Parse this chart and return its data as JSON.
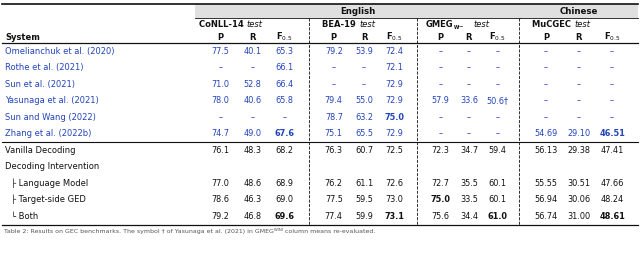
{
  "rows": [
    {
      "name": "Omelianchuk et al. (2020)",
      "blue": true,
      "conll": [
        "77.5",
        "40.1",
        "65.3"
      ],
      "bea": [
        "79.2",
        "53.9",
        "72.4"
      ],
      "gmeg": [
        "–",
        "–",
        "–"
      ],
      "mucgec": [
        "–",
        "–",
        "–"
      ]
    },
    {
      "name": "Rothe et al. (2021)",
      "blue": true,
      "conll": [
        "–",
        "–",
        "66.1"
      ],
      "bea": [
        "–",
        "–",
        "72.1"
      ],
      "gmeg": [
        "–",
        "–",
        "–"
      ],
      "mucgec": [
        "–",
        "–",
        "–"
      ]
    },
    {
      "name": "Sun et al. (2021)",
      "blue": true,
      "conll": [
        "71.0",
        "52.8",
        "66.4"
      ],
      "bea": [
        "–",
        "–",
        "72.9"
      ],
      "gmeg": [
        "–",
        "–",
        "–"
      ],
      "mucgec": [
        "–",
        "–",
        "–"
      ]
    },
    {
      "name": "Yasunaga et al. (2021)",
      "blue": true,
      "conll": [
        "78.0",
        "40.6",
        "65.8"
      ],
      "bea": [
        "79.4",
        "55.0",
        "72.9"
      ],
      "gmeg": [
        "57.9",
        "33.6",
        "50.6†"
      ],
      "mucgec": [
        "–",
        "–",
        "–"
      ]
    },
    {
      "name": "Sun and Wang (2022)",
      "blue": true,
      "conll": [
        "–",
        "–",
        "–"
      ],
      "bea": [
        "78.7",
        "63.2",
        "75.0"
      ],
      "gmeg": [
        "–",
        "–",
        "–"
      ],
      "mucgec": [
        "–",
        "–",
        "–"
      ]
    },
    {
      "name": "Zhang et al. (2022b)",
      "blue": true,
      "conll": [
        "74.7",
        "49.0",
        "67.6"
      ],
      "bea": [
        "75.1",
        "65.5",
        "72.9"
      ],
      "gmeg": [
        "–",
        "–",
        "–"
      ],
      "mucgec": [
        "54.69",
        "29.10",
        "46.51"
      ]
    },
    {
      "name": "Vanilla Decoding",
      "blue": false,
      "separator_before": true,
      "conll": [
        "76.1",
        "48.3",
        "68.2"
      ],
      "bea": [
        "76.3",
        "60.7",
        "72.5"
      ],
      "gmeg": [
        "72.3",
        "34.7",
        "59.4"
      ],
      "mucgec": [
        "56.13",
        "29.38",
        "47.41"
      ]
    },
    {
      "name": "Decoding Intervention",
      "blue": false,
      "header_only": true
    },
    {
      "name": "├ Language Model",
      "blue": false,
      "conll": [
        "77.0",
        "48.6",
        "68.9"
      ],
      "bea": [
        "76.2",
        "61.1",
        "72.6"
      ],
      "gmeg": [
        "72.7",
        "35.5",
        "60.1"
      ],
      "mucgec": [
        "55.55",
        "30.51",
        "47.66"
      ]
    },
    {
      "name": "├ Target-side GED",
      "blue": false,
      "conll": [
        "78.6",
        "46.3",
        "69.0"
      ],
      "bea": [
        "77.5",
        "59.5",
        "73.0"
      ],
      "gmeg": [
        "75.0",
        "33.5",
        "60.1"
      ],
      "mucgec": [
        "56.94",
        "30.06",
        "48.24"
      ]
    },
    {
      "name": "└ Both",
      "blue": false,
      "conll": [
        "79.2",
        "46.8",
        "69.6"
      ],
      "bea": [
        "77.4",
        "59.9",
        "73.1"
      ],
      "gmeg": [
        "75.6",
        "34.4",
        "61.0"
      ],
      "mucgec": [
        "56.74",
        "31.00",
        "48.61"
      ]
    }
  ],
  "bold_values": [
    "67.6",
    "75.0",
    "69.6",
    "73.1",
    "61.0",
    "46.51",
    "48.61"
  ],
  "blue_color": "#2244bb",
  "black_color": "#111111",
  "gray_color": "#555555",
  "header_bg_color": "#e8e8e8",
  "footnote": "Table 2: Results on GEC benchmarks. The symbol † of Yasunaga et al. (2021) in GMEG",
  "footnote2": " column means re-evaluated."
}
